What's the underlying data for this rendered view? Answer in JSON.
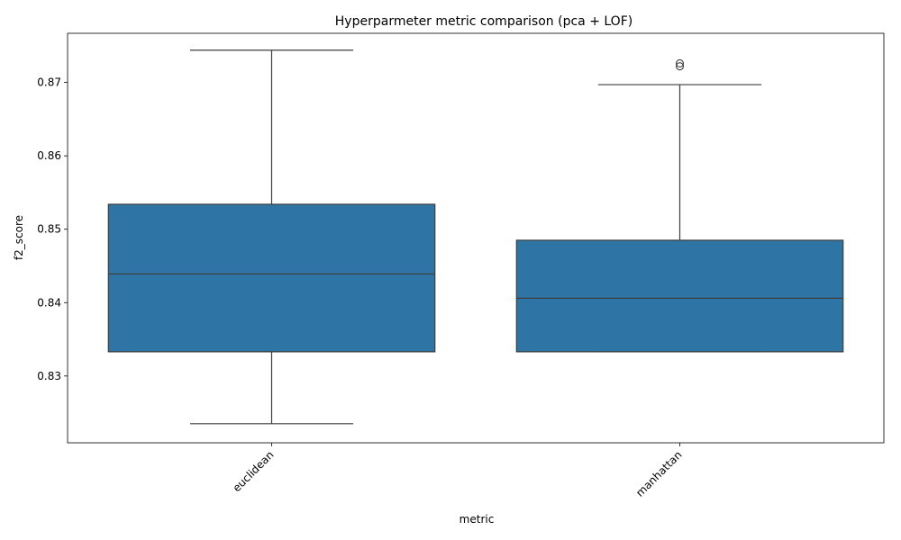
{
  "chart_data": {
    "type": "box",
    "title": "Hyperparmeter metric comparison (pca + LOF)",
    "xlabel": "metric",
    "ylabel": "f2_score",
    "ylim": [
      0.8209,
      0.8767
    ],
    "yticks": [
      0.83,
      0.84,
      0.85,
      0.86,
      0.87
    ],
    "ytick_labels": [
      "0.83",
      "0.84",
      "0.85",
      "0.86",
      "0.87"
    ],
    "categories": [
      "euclidean",
      "manhattan"
    ],
    "grid": false,
    "legend": null,
    "boxes": [
      {
        "category": "euclidean",
        "whisker_low": 0.8235,
        "q1": 0.8333,
        "median": 0.8439,
        "q3": 0.8534,
        "whisker_high": 0.8744,
        "outliers": []
      },
      {
        "category": "manhattan",
        "whisker_low": 0.8333,
        "q1": 0.8333,
        "median": 0.8406,
        "q3": 0.8485,
        "whisker_high": 0.8697,
        "outliers": [
          0.8722,
          0.8726
        ]
      }
    ],
    "colors": {
      "box_fill": "#2e75a6",
      "line": "#3d3d3d",
      "axis": "#000000"
    }
  }
}
